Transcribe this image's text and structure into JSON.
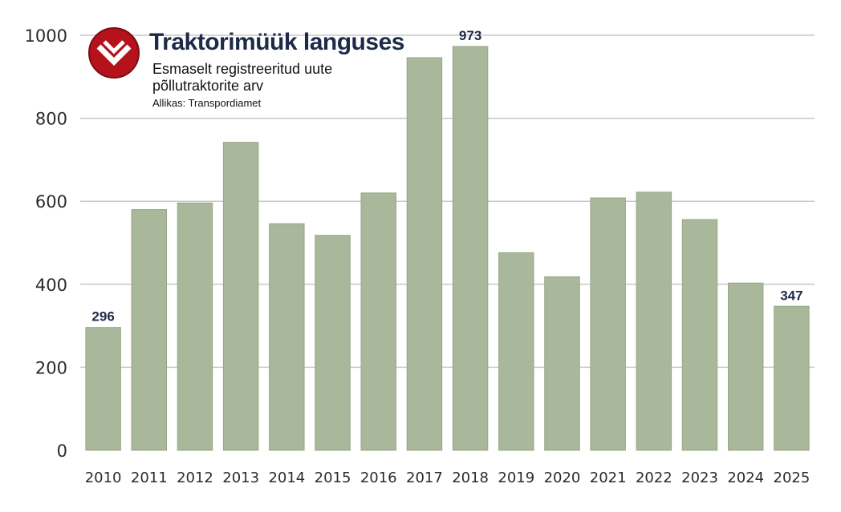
{
  "chart_data": {
    "type": "bar",
    "title": "Traktorimüük languses",
    "subtitle": "Esmaselt registreeritud uute põllutraktorite arv",
    "source": "Allikas: Transpordiamet",
    "categories": [
      "2010",
      "2011",
      "2012",
      "2013",
      "2014",
      "2015",
      "2016",
      "2017",
      "2018",
      "2019",
      "2020",
      "2021",
      "2022",
      "2023",
      "2024",
      "2025"
    ],
    "values": [
      296,
      580,
      596,
      742,
      546,
      518,
      620,
      946,
      973,
      476,
      418,
      608,
      622,
      556,
      403,
      347
    ],
    "labeled_values": {
      "0": "296",
      "8": "973",
      "15": "347"
    },
    "ylim": [
      0,
      1000
    ],
    "yticks": [
      "0",
      "200",
      "400",
      "600",
      "800",
      "1000"
    ],
    "xlabel": "",
    "ylabel": "",
    "grid": true,
    "colors": {
      "bar": "#a9b89a",
      "bar_edge": "#97a687",
      "grid": "#c8c8c8",
      "title": "#1e2a4a",
      "logo": "#b5121b"
    }
  }
}
